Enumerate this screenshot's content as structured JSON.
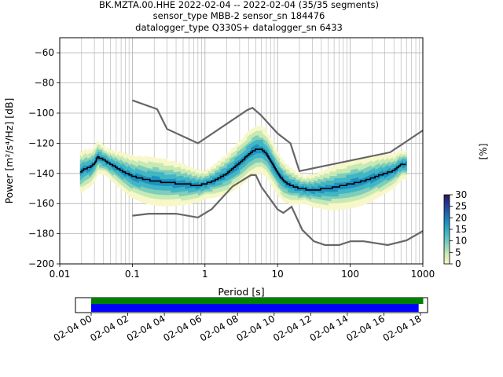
{
  "title": {
    "line1": "BK.MZTA.00.HHE   2022-02-04 -- 2022-02-04  (35/35 segments)",
    "line2": "sensor_type MBB-2 sensor_sn 184476",
    "line3": "datalogger_type Q330S+ datalogger_sn 6433"
  },
  "chart_data": [
    {
      "type": "heatmap",
      "xlabel": "Period [s]",
      "ylabel": "Power [m²/s⁴/Hz] [dB]",
      "x_scale": "log",
      "xlim": [
        0.01,
        1000
      ],
      "ylim": [
        -200,
        -50
      ],
      "x_ticks": [
        {
          "value": 0.01,
          "label": "0.01"
        },
        {
          "value": 0.1,
          "label": "0.1"
        },
        {
          "value": 1,
          "label": "1"
        },
        {
          "value": 10,
          "label": "10"
        },
        {
          "value": 100,
          "label": "100"
        },
        {
          "value": 1000,
          "label": "1000"
        }
      ],
      "y_ticks": [
        {
          "value": -60,
          "label": "−60"
        },
        {
          "value": -80,
          "label": "−80"
        },
        {
          "value": -100,
          "label": "−100"
        },
        {
          "value": -120,
          "label": "−120"
        },
        {
          "value": -140,
          "label": "−140"
        },
        {
          "value": -160,
          "label": "−160"
        },
        {
          "value": -180,
          "label": "−180"
        },
        {
          "value": -200,
          "label": "−200"
        }
      ],
      "grid": true,
      "colorbar": {
        "label": "[%]",
        "range": [
          0,
          30
        ],
        "ticks": [
          "0",
          "5",
          "10",
          "15",
          "20",
          "25",
          "30"
        ],
        "colors": [
          "#f7f7c9",
          "#c7e9b4",
          "#7fcdbb",
          "#41b6c4",
          "#1d91c0",
          "#225ea8",
          "#253494",
          "#2e1a4e"
        ]
      },
      "mean_curve": {
        "color": "#000000",
        "x": [
          0.019,
          0.022,
          0.026,
          0.03,
          0.033,
          0.04,
          0.05,
          0.07,
          0.1,
          0.15,
          0.2,
          0.3,
          0.5,
          0.8,
          1.0,
          1.3,
          2.0,
          3.0,
          4.0,
          5.0,
          6.0,
          7.0,
          8.0,
          10.0,
          12.0,
          15.0,
          20.0,
          30.0,
          50.0,
          80.0,
          100.0,
          150.0,
          200.0,
          300.0,
          400.0,
          500.0,
          600.0
        ],
        "y": [
          -139,
          -137,
          -136,
          -133,
          -129,
          -131,
          -134,
          -138,
          -142,
          -144,
          -145,
          -146,
          -147,
          -148,
          -147,
          -145,
          -140,
          -133,
          -127,
          -124,
          -124,
          -127,
          -132,
          -140,
          -145,
          -148,
          -150,
          -151,
          -150,
          -148,
          -147,
          -145,
          -143,
          -140,
          -138,
          -134,
          -134
        ]
      },
      "noise_models": {
        "color": "#666666",
        "high": {
          "x": [
            0.1,
            0.22,
            0.3,
            0.8,
            3.8,
            4.5,
            5.8,
            10.0,
            15.0,
            20.0,
            354.8,
            1000.0
          ],
          "y": [
            -91.5,
            -97.4,
            -110.5,
            -120.0,
            -98.0,
            -96.5,
            -101.0,
            -113.5,
            -120.0,
            -138.5,
            -126.0,
            -111.5
          ]
        },
        "low": {
          "x": [
            0.1,
            0.17,
            0.4,
            0.8,
            1.24,
            2.4,
            4.3,
            5.0,
            6.0,
            10.0,
            12.0,
            15.6,
            21.9,
            31.6,
            45.0,
            70.0,
            101.0,
            154.0,
            328.0,
            600.0,
            1000.0
          ],
          "y": [
            -168.0,
            -166.7,
            -166.7,
            -169.2,
            -163.7,
            -148.6,
            -141.1,
            -141.1,
            -149.0,
            -163.8,
            -166.2,
            -162.1,
            -177.5,
            -185.0,
            -187.5,
            -187.5,
            -185.0,
            -185.0,
            -187.5,
            -184.4,
            -178.2
          ]
        }
      }
    },
    {
      "type": "bar",
      "xlim": [
        "02-04 00",
        "02-04 19"
      ],
      "x_ticks": [
        "02-04 00",
        "02-04 02",
        "02-04 04",
        "02-04 06",
        "02-04 08",
        "02-04 10",
        "02-04 12",
        "02-04 14",
        "02-04 16",
        "02-04 18"
      ],
      "series": [
        {
          "color": "#008000",
          "start_hour": 0.0,
          "end_hour": 18.15
        },
        {
          "color": "#0000ff",
          "start_hour": 0.0,
          "end_hour": 17.9
        }
      ]
    }
  ]
}
